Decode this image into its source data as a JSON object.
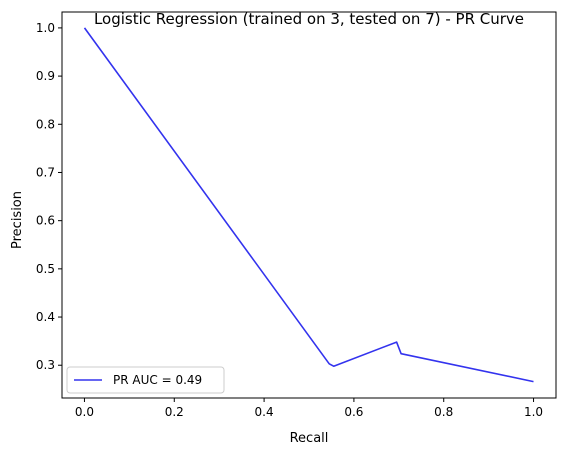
{
  "chart_data": {
    "type": "line",
    "title": "Logistic Regression (trained on 3, tested on 7) -  PR Curve",
    "xlabel": "Recall",
    "ylabel": "Precision",
    "xlim": [
      -0.05,
      1.05
    ],
    "ylim": [
      0.232,
      1.033
    ],
    "xticks": [
      "0.0",
      "0.2",
      "0.4",
      "0.6",
      "0.8",
      "1.0"
    ],
    "yticks": [
      "0.3",
      "0.4",
      "0.5",
      "0.6",
      "0.7",
      "0.8",
      "0.9",
      "1.0"
    ],
    "grid": false,
    "legend_position": "lower left",
    "series": [
      {
        "name": "PR AUC = 0.49",
        "color": "#3333ee",
        "x": [
          0.0,
          0.545,
          0.555,
          0.695,
          0.705,
          1.0
        ],
        "y": [
          1.0,
          0.303,
          0.298,
          0.348,
          0.324,
          0.266
        ]
      }
    ]
  }
}
